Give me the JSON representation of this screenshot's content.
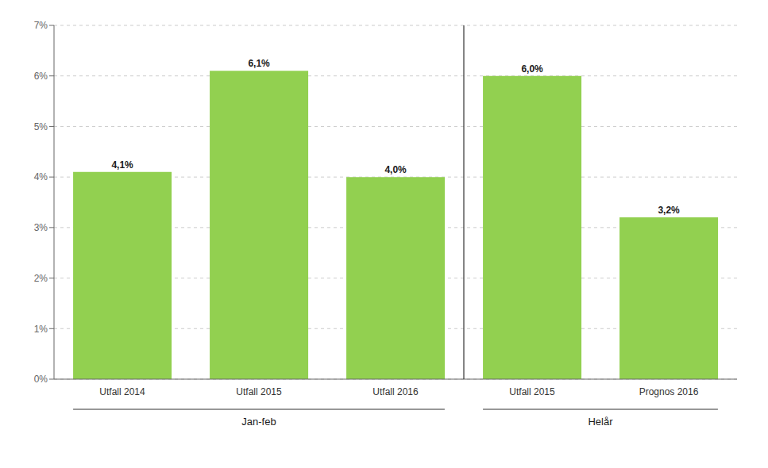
{
  "chart_data": {
    "type": "bar",
    "categories": [
      "Utfall 2014",
      "Utfall 2015",
      "Utfall 2016",
      "Utfall 2015",
      "Prognos 2016"
    ],
    "groups": [
      "Jan-feb",
      "Jan-feb",
      "Jan-feb",
      "Helår",
      "Helår"
    ],
    "values": [
      0.041,
      0.061,
      0.04,
      0.06,
      0.032
    ],
    "value_labels": [
      "4,1%",
      "6,1%",
      "4,0%",
      "6,0%",
      "3,2%"
    ],
    "data_labels": true,
    "color": "#92d050",
    "ylim": [
      0,
      0.07
    ],
    "yticks": [
      {
        "value": 0.0,
        "label": "0%"
      },
      {
        "value": 0.01,
        "label": "1%"
      },
      {
        "value": 0.02,
        "label": "2%"
      },
      {
        "value": 0.03,
        "label": "3%"
      },
      {
        "value": 0.04,
        "label": "4%"
      },
      {
        "value": 0.05,
        "label": "5%"
      },
      {
        "value": 0.06,
        "label": "6%"
      },
      {
        "value": 0.07,
        "label": "7%"
      }
    ],
    "grid": true
  }
}
